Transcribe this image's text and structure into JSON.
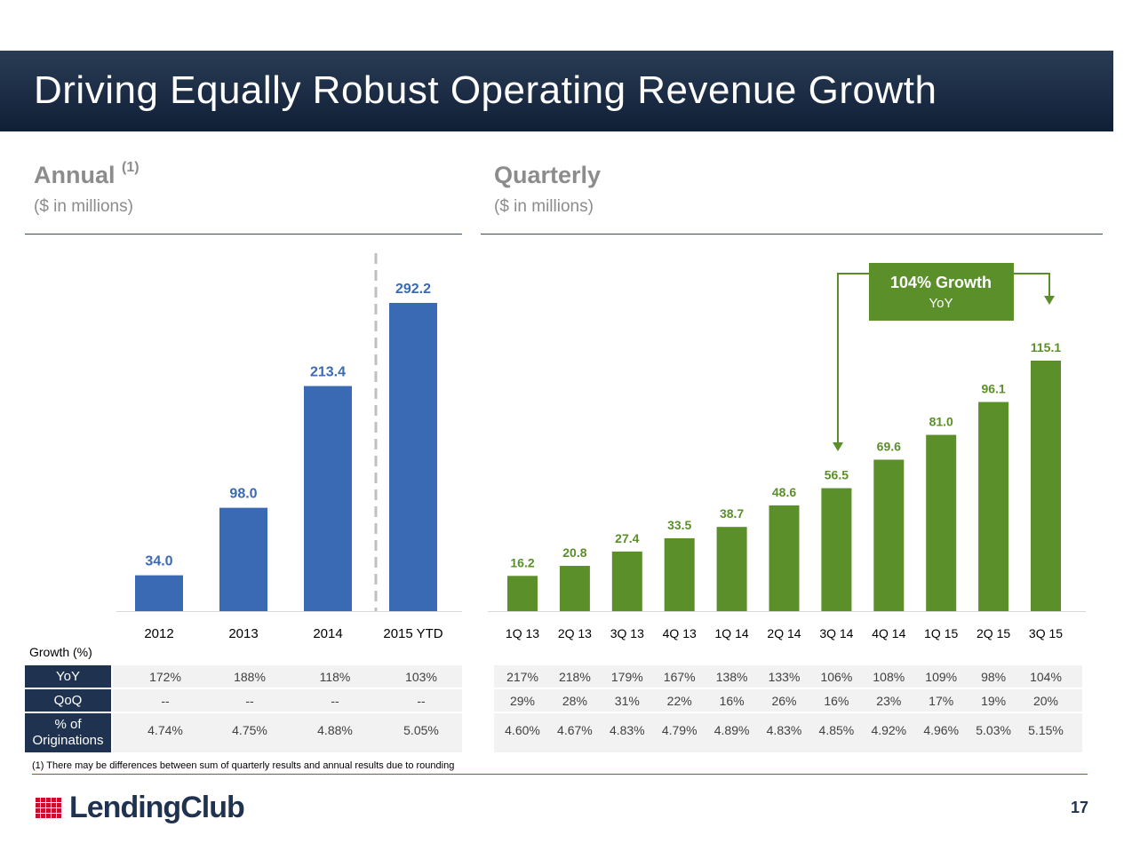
{
  "title": "Driving Equally Robust Operating Revenue Growth",
  "annual": {
    "heading": "Annual",
    "sup": "(1)",
    "sub": "($ in millions)"
  },
  "quarterly": {
    "heading": "Quarterly",
    "sub": "($ in millions)"
  },
  "annotation": {
    "line1": "104% Growth",
    "line2": "YoY"
  },
  "colors": {
    "annual_bar": "#3a6ab3",
    "quarterly_bar": "#5a8f29",
    "banner": "#14243b",
    "table_header": "#1f3350",
    "footer_rule": "#c0392b"
  },
  "chart_data": [
    {
      "type": "bar",
      "categories": [
        "2012",
        "2013",
        "2014",
        "2015 YTD"
      ],
      "values": [
        34.0,
        98.0,
        213.4,
        292.2
      ],
      "labels": [
        "34.0",
        "98.0",
        "213.4",
        "292.2"
      ],
      "title": "Annual",
      "ylabel": "",
      "ylim": [
        0,
        320
      ]
    },
    {
      "type": "bar",
      "categories": [
        "1Q13",
        "2Q13",
        "3Q13",
        "4Q13",
        "1Q14",
        "2Q14",
        "3Q14",
        "4Q14",
        "1Q15",
        "2Q15",
        "3Q15"
      ],
      "values": [
        16.2,
        20.8,
        27.4,
        33.5,
        38.7,
        48.6,
        56.5,
        69.6,
        81.0,
        96.1,
        115.1
      ],
      "labels": [
        "16.2",
        "20.8",
        "27.4",
        "33.5",
        "38.7",
        "48.6",
        "56.5",
        "69.6",
        "81.0",
        "96.1",
        "115.1"
      ],
      "title": "Quarterly",
      "ylabel": "",
      "ylim": [
        0,
        150
      ]
    }
  ],
  "table": {
    "title": "Growth (%)",
    "row_labels": [
      "YoY",
      "QoQ",
      "% of Originations"
    ],
    "annual": {
      "yoy": [
        "172%",
        "188%",
        "118%",
        "103%"
      ],
      "qoq": [
        "--",
        "--",
        "--",
        "--"
      ],
      "orig": [
        "4.74%",
        "4.75%",
        "4.88%",
        "5.05%"
      ]
    },
    "quarterly": {
      "yoy": [
        "217%",
        "218%",
        "179%",
        "167%",
        "138%",
        "133%",
        "106%",
        "108%",
        "109%",
        "98%",
        "104%"
      ],
      "qoq": [
        "29%",
        "28%",
        "31%",
        "22%",
        "16%",
        "26%",
        "16%",
        "23%",
        "17%",
        "19%",
        "20%"
      ],
      "orig": [
        "4.60%",
        "4.67%",
        "4.83%",
        "4.79%",
        "4.89%",
        "4.83%",
        "4.85%",
        "4.92%",
        "4.96%",
        "5.03%",
        "5.15%"
      ]
    }
  },
  "footnote": "(1) There may be differences between sum of quarterly results and annual results due to rounding",
  "logo_text": "LendingClub",
  "page_number": "17"
}
